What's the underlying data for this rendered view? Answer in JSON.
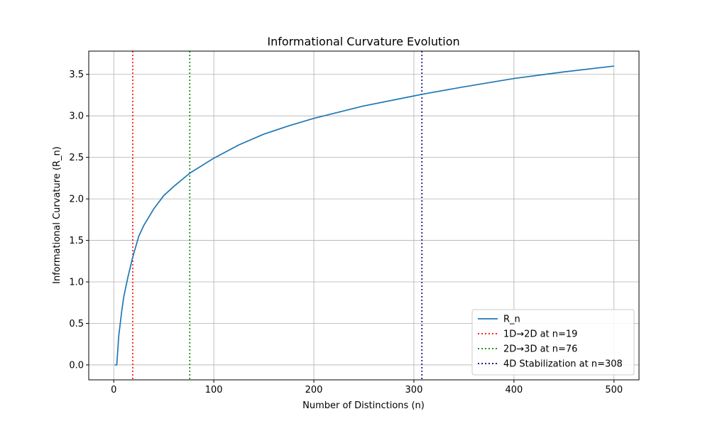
{
  "chart_data": {
    "type": "line",
    "title": "Informational Curvature Evolution",
    "xlabel": "Number of Distinctions (n)",
    "ylabel": "Informational Curvature (R_n)",
    "xlim": [
      -25,
      525
    ],
    "ylim": [
      -0.18,
      3.78
    ],
    "xticks": [
      0,
      100,
      200,
      300,
      400,
      500
    ],
    "yticks": [
      0.0,
      0.5,
      1.0,
      1.5,
      2.0,
      2.5,
      3.0,
      3.5
    ],
    "xtick_labels": [
      "0",
      "100",
      "200",
      "300",
      "400",
      "500"
    ],
    "ytick_labels": [
      "0.0",
      "0.5",
      "1.0",
      "1.5",
      "2.0",
      "2.5",
      "3.0",
      "3.5"
    ],
    "grid": true,
    "legend_position": "bottom-right",
    "series": [
      {
        "name": "R_n",
        "color": "#1f77b4",
        "style": "solid",
        "x": [
          1,
          3,
          5,
          8,
          10,
          14,
          19,
          25,
          30,
          40,
          50,
          60,
          76,
          100,
          125,
          150,
          175,
          200,
          250,
          300,
          308,
          350,
          400,
          450,
          500
        ],
        "y": [
          0.0,
          0.0,
          0.35,
          0.65,
          0.82,
          1.05,
          1.3,
          1.55,
          1.68,
          1.88,
          2.04,
          2.15,
          2.31,
          2.49,
          2.65,
          2.78,
          2.88,
          2.97,
          3.12,
          3.24,
          3.26,
          3.35,
          3.45,
          3.53,
          3.6
        ]
      }
    ],
    "vlines": [
      {
        "name": "1D→2D at n=19",
        "x": 19,
        "color": "#ff0000",
        "style": "dotted"
      },
      {
        "name": "2D→3D at n=76",
        "x": 76,
        "color": "#008000",
        "style": "dotted"
      },
      {
        "name": "4D Stabilization at n=308",
        "x": 308,
        "color": "#00008b",
        "style": "dotted"
      }
    ]
  }
}
